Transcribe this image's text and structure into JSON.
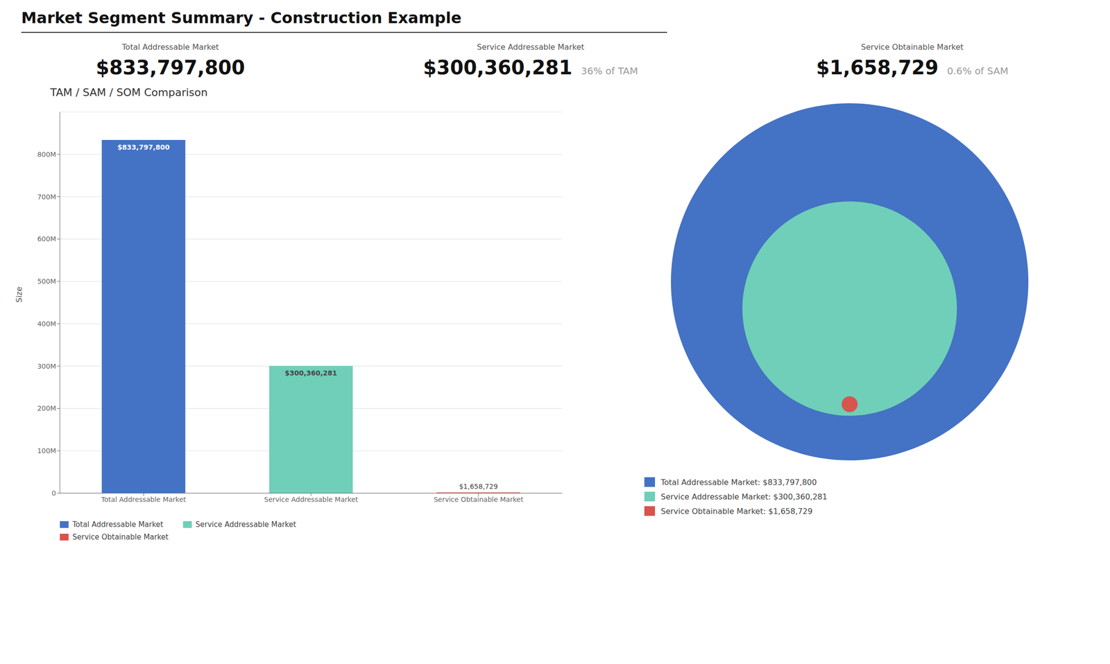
{
  "chart_data": [
    {
      "type": "bar",
      "title": "Market Segment Summary - Construction Example",
      "subtitle": "TAM / SAM / SOM Comparison",
      "annotations": [
        {
          "label": "Total Addressable Market",
          "text": "$833,797,800"
        },
        {
          "label": "Service Addressable Market",
          "text": "$300,360,281",
          "note": "36% of TAM"
        },
        {
          "label": "Service Obtainable Market",
          "text": "$1,658,729",
          "note": "0.6% of SAM"
        }
      ],
      "categories": [
        "Total Addressable Market",
        "Service Addressable Market",
        "Service Obtainable Market"
      ],
      "values": [
        833797800,
        300360281,
        1658729
      ],
      "value_labels": [
        "$833,797,800",
        "$300,360,281",
        "$1,658,729"
      ],
      "colors": [
        "#4472C4",
        "#6FCFB8",
        "#D9534F"
      ],
      "ylabel": "Size",
      "ylim": [
        0,
        900000000
      ],
      "yticks": [
        0,
        {
          "value": 100000000,
          "label": "100M"
        },
        {
          "value": 200000000,
          "label": "200M"
        },
        {
          "value": 300000000,
          "label": "300M"
        },
        {
          "value": 400000000,
          "label": "400M"
        },
        {
          "value": 500000000,
          "label": "500M"
        },
        {
          "value": 600000000,
          "label": "600M"
        },
        {
          "value": 700000000,
          "label": "700M"
        },
        {
          "value": 800000000,
          "label": "800M"
        }
      ],
      "grid": true,
      "data_labels": true,
      "legend": "lower left"
    },
    {
      "type": "bubble",
      "series": [
        {
          "name": "Total Addressable Market: $833,797,800",
          "color": "#4472C4",
          "values": [
            833797800
          ]
        },
        {
          "name": "Service Addressable Market: $300,360,281",
          "color": "#6FCFB8",
          "values": [
            300360281
          ]
        },
        {
          "name": "Service Obtainable Market: $1,658,729",
          "color": "#D9534F",
          "values": [
            1658729
          ]
        }
      ],
      "legend": "bottom left"
    }
  ]
}
